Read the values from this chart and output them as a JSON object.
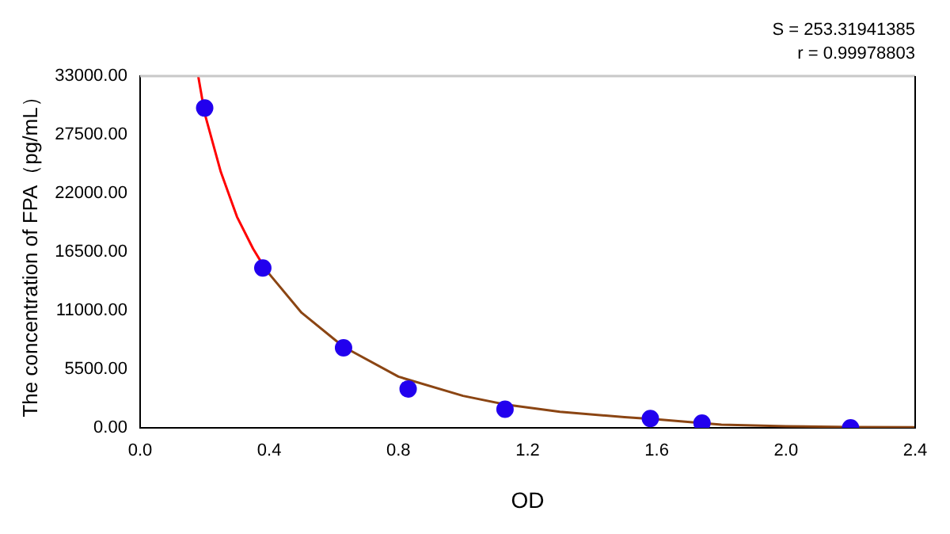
{
  "chart_data": {
    "type": "scatter",
    "xlabel": "OD",
    "ylabel": "The concentration of FPA（pg/mL）",
    "annotations": [
      "S = 253.31941385",
      "r = 0.99978803"
    ],
    "xlim": [
      0,
      2.4
    ],
    "xticks": [
      {
        "value": 0,
        "label": "0.0"
      },
      0.4,
      0.8,
      1.2,
      1.6,
      {
        "value": 2,
        "label": "2.0"
      },
      2.4
    ],
    "ylim": [
      0,
      33000
    ],
    "yticks": [
      {
        "value": 0,
        "label": "0.00"
      },
      {
        "value": 5500,
        "label": "5500.00"
      },
      {
        "value": 11000,
        "label": "11000.00"
      },
      {
        "value": 16500,
        "label": "16500.00"
      },
      {
        "value": 22000,
        "label": "22000.00"
      },
      {
        "value": 27500,
        "label": "27500.00"
      },
      {
        "value": 33000,
        "label": "33000.00"
      }
    ],
    "grid": false,
    "legend": false,
    "series": [
      {
        "type": "line",
        "color": "#ff0000",
        "marker": "none",
        "x": [
          0.18,
          0.2,
          0.25,
          0.3,
          0.35,
          0.39
        ],
        "values": [
          33000,
          29500,
          24000,
          19800,
          16800,
          14800
        ]
      },
      {
        "type": "line",
        "color": "#8b4513",
        "marker": "none",
        "x": [
          0.39,
          0.5,
          0.63,
          0.8,
          1.0,
          1.13,
          1.3,
          1.5,
          1.6,
          1.74,
          1.8,
          2.0,
          2.2,
          2.4
        ],
        "values": [
          14800,
          10800,
          7600,
          4800,
          3000,
          2200,
          1500,
          1000,
          800,
          450,
          300,
          150,
          80,
          50
        ]
      },
      {
        "type": "scatter",
        "color": "#2200ee",
        "marker": "circle",
        "x": [
          0.2,
          0.38,
          0.63,
          0.83,
          1.13,
          1.58,
          1.74,
          2.2
        ],
        "values": [
          30000,
          15000,
          7500,
          3650,
          1750,
          870,
          440,
          0
        ]
      }
    ]
  }
}
